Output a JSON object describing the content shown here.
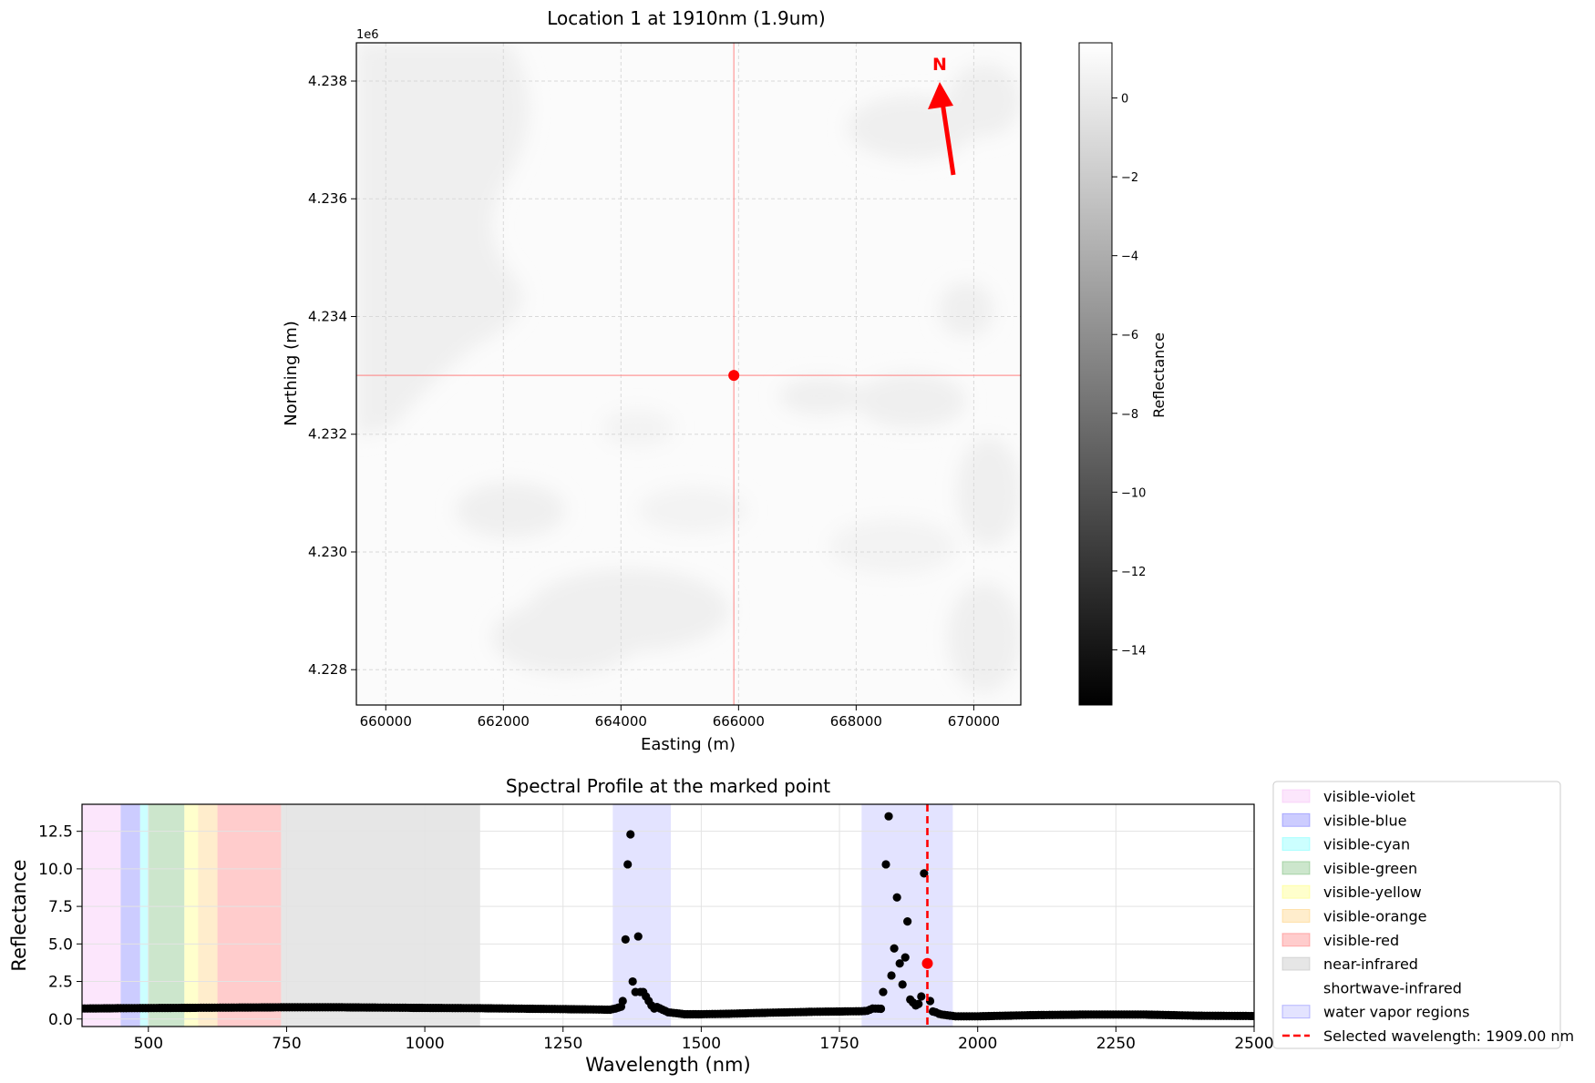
{
  "chart_data": [
    {
      "type": "heatmap",
      "title": "Location 1 at 1910nm (1.9um)",
      "xlabel": "Easting (m)",
      "ylabel": "Northing (m)",
      "xlim": [
        659500,
        670800
      ],
      "ylim": [
        4227400,
        4238650
      ],
      "x_ticks": [
        660000,
        662000,
        664000,
        666000,
        668000,
        670000
      ],
      "x_tick_labels": [
        "660000",
        "662000",
        "664000",
        "666000",
        "668000",
        "670000"
      ],
      "y_ticks": [
        4228000,
        4230000,
        4232000,
        4234000,
        4236000,
        4238000
      ],
      "y_tick_labels": [
        "4.228",
        "4.230",
        "4.232",
        "4.234",
        "4.236",
        "4.238"
      ],
      "y_offset_label": "1e6",
      "grid": true,
      "marked_point": {
        "easting": 665920,
        "northing": 4233000
      },
      "north_arrow": {
        "label": "N",
        "color": "#ff0000"
      },
      "colorbar": {
        "label": "Reflectance",
        "range": [
          -15.4,
          1.4
        ],
        "ticks": [
          0,
          -2,
          -4,
          -6,
          -8,
          -10,
          -12,
          -14
        ],
        "tick_labels": [
          "0",
          "−2",
          "−4",
          "−6",
          "−8",
          "−10",
          "−12",
          "−14"
        ],
        "colormap": "gray"
      }
    },
    {
      "type": "scatter",
      "title": "Spectral Profile at the marked point",
      "xlabel": "Wavelength (nm)",
      "ylabel": "Reflectance",
      "xlim": [
        380,
        2500
      ],
      "ylim": [
        -0.5,
        14.3
      ],
      "x_ticks": [
        500,
        750,
        1000,
        1250,
        1500,
        1750,
        2000,
        2250,
        2500
      ],
      "x_tick_labels": [
        "500",
        "750",
        "1000",
        "1250",
        "1500",
        "1750",
        "2000",
        "2250",
        "2500"
      ],
      "y_ticks": [
        0,
        2.5,
        5,
        7.5,
        10,
        12.5
      ],
      "y_tick_labels": [
        "0.0",
        "2.5",
        "5.0",
        "7.5",
        "10.0",
        "12.5"
      ],
      "grid": true,
      "regions": [
        {
          "name": "visible-violet",
          "range": [
            380,
            450
          ],
          "color": "#ee82ee"
        },
        {
          "name": "visible-blue",
          "range": [
            450,
            485
          ],
          "color": "#0000ff"
        },
        {
          "name": "visible-cyan",
          "range": [
            485,
            500
          ],
          "color": "#00ffff"
        },
        {
          "name": "visible-green",
          "range": [
            500,
            565
          ],
          "color": "#008000"
        },
        {
          "name": "visible-yellow",
          "range": [
            565,
            590
          ],
          "color": "#ffff00"
        },
        {
          "name": "visible-orange",
          "range": [
            590,
            625
          ],
          "color": "#ffa500"
        },
        {
          "name": "visible-red",
          "range": [
            625,
            740
          ],
          "color": "#ff0000"
        },
        {
          "name": "near-infrared",
          "range": [
            740,
            1100
          ],
          "color": "#808080"
        },
        {
          "name": "shortwave-infrared",
          "range": [
            1100,
            2500
          ],
          "color": "#ffffff"
        }
      ],
      "water_vapor_regions": {
        "name": "water vapor regions",
        "ranges": [
          [
            1340,
            1445
          ],
          [
            1790,
            1955
          ]
        ],
        "color": "#0000ff"
      },
      "selected_wavelength": {
        "value": 1909,
        "label": "Selected wavelength: 1909.00 nm",
        "reflectance": 3.7,
        "color": "#ff0000"
      },
      "baseline": [
        [
          380,
          0.7
        ],
        [
          450,
          0.72
        ],
        [
          600,
          0.75
        ],
        [
          740,
          0.78
        ],
        [
          850,
          0.78
        ],
        [
          1000,
          0.74
        ],
        [
          1100,
          0.72
        ],
        [
          1200,
          0.68
        ],
        [
          1300,
          0.64
        ],
        [
          1335,
          0.62
        ],
        [
          1345,
          0.7
        ],
        [
          1405,
          1.4
        ],
        [
          1420,
          0.8
        ],
        [
          1440,
          0.45
        ],
        [
          1470,
          0.32
        ],
        [
          1500,
          0.32
        ],
        [
          1550,
          0.35
        ],
        [
          1600,
          0.4
        ],
        [
          1700,
          0.48
        ],
        [
          1790,
          0.52
        ],
        [
          1800,
          0.55
        ],
        [
          1810,
          0.7
        ],
        [
          1900,
          0.6
        ],
        [
          1915,
          0.5
        ],
        [
          1935,
          0.3
        ],
        [
          1960,
          0.18
        ],
        [
          2000,
          0.18
        ],
        [
          2100,
          0.26
        ],
        [
          2200,
          0.3
        ],
        [
          2300,
          0.3
        ],
        [
          2400,
          0.22
        ],
        [
          2500,
          0.2
        ]
      ],
      "sampling_step_nm": 5,
      "points": [
        [
          1358,
          1.2
        ],
        [
          1363,
          5.3
        ],
        [
          1367,
          10.3
        ],
        [
          1372,
          12.3
        ],
        [
          1376,
          2.5
        ],
        [
          1381,
          1.8
        ],
        [
          1386,
          5.5
        ],
        [
          1390,
          1.8
        ],
        [
          1395,
          1.8
        ],
        [
          1400,
          1.5
        ],
        [
          1405,
          1.2
        ],
        [
          1410,
          0.9
        ],
        [
          1415,
          0.7
        ],
        [
          1829,
          1.8
        ],
        [
          1834,
          10.3
        ],
        [
          1839,
          13.5
        ],
        [
          1844,
          2.9
        ],
        [
          1849,
          4.7
        ],
        [
          1854,
          8.1
        ],
        [
          1859,
          3.7
        ],
        [
          1864,
          2.3
        ],
        [
          1869,
          4.1
        ],
        [
          1873,
          6.5
        ],
        [
          1878,
          1.3
        ],
        [
          1883,
          1.1
        ],
        [
          1888,
          0.9
        ],
        [
          1893,
          1.0
        ],
        [
          1898,
          1.5
        ],
        [
          1903,
          9.7
        ],
        [
          1914,
          1.2
        ],
        [
          1919,
          0.5
        ],
        [
          1924,
          0.45
        ]
      ]
    }
  ]
}
